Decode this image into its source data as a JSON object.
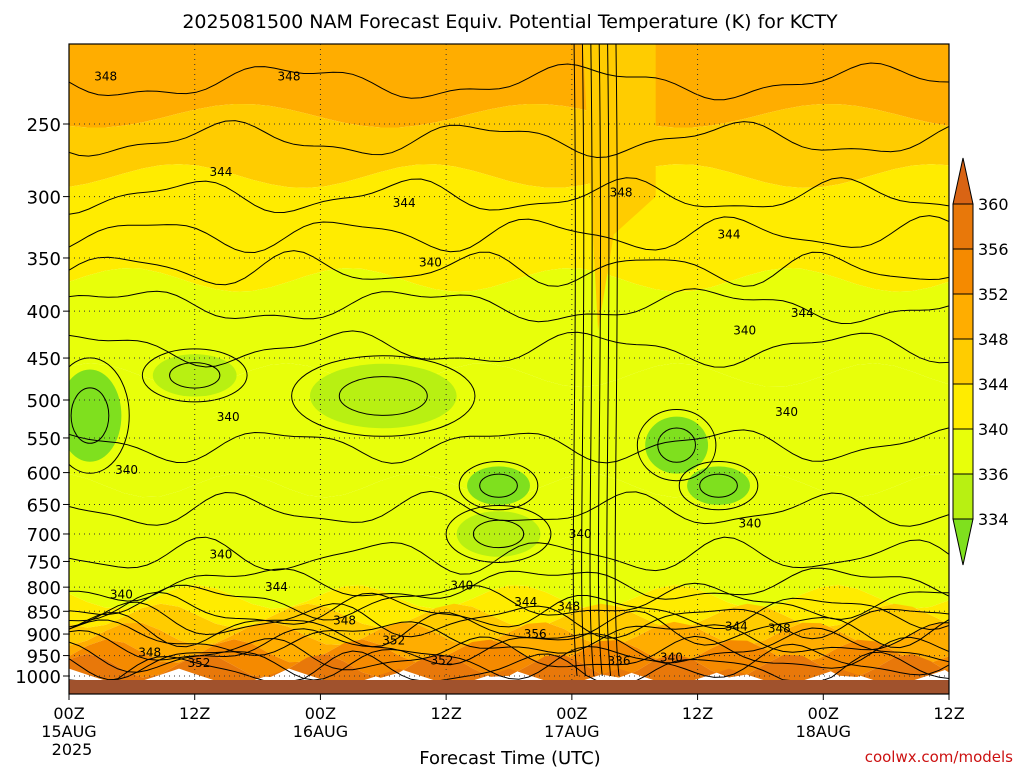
{
  "chart_data": {
    "type": "heatmap",
    "title": "2025081500 NAM Forecast Equiv. Potential Temperature (K) for KCTY",
    "xlabel": "Forecast Time (UTC)",
    "ylabel": "",
    "credit": "coolwx.com/models",
    "x_ticks": [
      {
        "hour": 0,
        "label": "00Z",
        "date": "15AUG",
        "year": "2025"
      },
      {
        "hour": 12,
        "label": "12Z",
        "date": "",
        "year": ""
      },
      {
        "hour": 24,
        "label": "00Z",
        "date": "16AUG",
        "year": ""
      },
      {
        "hour": 36,
        "label": "12Z",
        "date": "",
        "year": ""
      },
      {
        "hour": 48,
        "label": "00Z",
        "date": "17AUG",
        "year": ""
      },
      {
        "hour": 60,
        "label": "12Z",
        "date": "",
        "year": ""
      },
      {
        "hour": 72,
        "label": "00Z",
        "date": "18AUG",
        "year": ""
      },
      {
        "hour": 84,
        "label": "12Z",
        "date": "",
        "year": ""
      }
    ],
    "xlim": [
      0,
      84
    ],
    "y_ticks": [
      250,
      300,
      350,
      400,
      450,
      500,
      550,
      600,
      650,
      700,
      750,
      800,
      850,
      900,
      950,
      1000
    ],
    "ylim": [
      200,
      1012
    ],
    "y_scale": "log-pressure (inverted)",
    "grid": true,
    "colorbar": {
      "levels": [
        334,
        336,
        340,
        344,
        348,
        352,
        356,
        360
      ],
      "colors": [
        "#7fe01e",
        "#b8f012",
        "#e8ff0a",
        "#ffec00",
        "#ffcc00",
        "#ffad00",
        "#f58a00",
        "#e8780a",
        "#d96414"
      ],
      "tick_labels": [
        "334",
        "336",
        "340",
        "344",
        "348",
        "352",
        "356",
        "360"
      ],
      "extend": "both"
    },
    "ground_color": "#a0522d",
    "contour_labels": [
      {
        "text": "348",
        "hour": 3.5,
        "p": 222
      },
      {
        "text": "348",
        "hour": 21,
        "p": 222
      },
      {
        "text": "344",
        "hour": 14.5,
        "p": 282
      },
      {
        "text": "344",
        "hour": 32,
        "p": 305
      },
      {
        "text": "348",
        "hour": 52.7,
        "p": 297
      },
      {
        "text": "344",
        "hour": 63,
        "p": 330
      },
      {
        "text": "340",
        "hour": 34.5,
        "p": 354
      },
      {
        "text": "340",
        "hour": 64.5,
        "p": 420
      },
      {
        "text": "344",
        "hour": 70,
        "p": 402
      },
      {
        "text": "340",
        "hour": 68.5,
        "p": 515
      },
      {
        "text": "340",
        "hour": 15.2,
        "p": 522
      },
      {
        "text": "340",
        "hour": 5.5,
        "p": 596
      },
      {
        "text": "340",
        "hour": 14.5,
        "p": 737
      },
      {
        "text": "340",
        "hour": 37.5,
        "p": 797
      },
      {
        "text": "340",
        "hour": 5,
        "p": 815
      },
      {
        "text": "344",
        "hour": 19.8,
        "p": 800
      },
      {
        "text": "340",
        "hour": 48.8,
        "p": 700
      },
      {
        "text": "340",
        "hour": 65,
        "p": 682
      },
      {
        "text": "344",
        "hour": 43.6,
        "p": 830
      },
      {
        "text": "348",
        "hour": 47.7,
        "p": 840
      },
      {
        "text": "348",
        "hour": 26.3,
        "p": 870
      },
      {
        "text": "344",
        "hour": 63.7,
        "p": 883
      },
      {
        "text": "348",
        "hour": 67.8,
        "p": 887
      },
      {
        "text": "352",
        "hour": 31,
        "p": 915
      },
      {
        "text": "356",
        "hour": 44.5,
        "p": 900
      },
      {
        "text": "348",
        "hour": 7.7,
        "p": 943
      },
      {
        "text": "352",
        "hour": 12.4,
        "p": 968
      },
      {
        "text": "352",
        "hour": 35.6,
        "p": 962
      },
      {
        "text": "336",
        "hour": 52.5,
        "p": 963
      },
      {
        "text": "340",
        "hour": 57.5,
        "p": 955
      }
    ]
  }
}
